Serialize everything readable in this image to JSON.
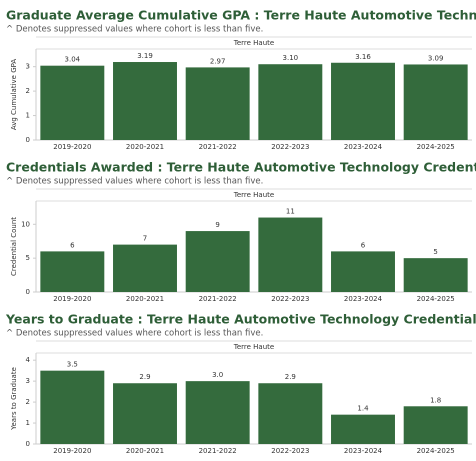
{
  "chart_data": [
    {
      "type": "bar",
      "title": "Graduate Average Cumulative GPA : Terre Haute Automotive Technology Credentials",
      "subtitle": "^ Denotes suppressed values where cohort is less than five.",
      "facet": "Terre Haute",
      "y_label": "Avg Cumulative GPA",
      "categories": [
        "2019-2020",
        "2020-2021",
        "2021-2022",
        "2022-2023",
        "2023-2024",
        "2024-2025"
      ],
      "values": [
        3.04,
        3.19,
        2.97,
        3.1,
        3.16,
        3.09
      ],
      "value_labels": [
        "3.04",
        "3.19",
        "2.97",
        "3.10",
        "3.16",
        "3.09"
      ],
      "color": "#346b3d",
      "ylim": [
        0,
        3.6
      ],
      "yticks": [
        0,
        1,
        2,
        3
      ],
      "grid": false
    },
    {
      "type": "bar",
      "title": "Credentials Awarded : Terre Haute Automotive Technology Credentials",
      "subtitle": "^ Denotes suppressed values where cohort is less than five.",
      "facet": "Terre Haute",
      "y_label": "Credential Count",
      "categories": [
        "2019-2020",
        "2020-2021",
        "2021-2022",
        "2022-2023",
        "2023-2024",
        "2024-2025"
      ],
      "values": [
        6,
        7,
        9,
        11,
        6,
        5
      ],
      "color": "#346b3d",
      "ylim": [
        0,
        13
      ],
      "yticks": [
        0,
        5,
        10
      ],
      "grid": false
    },
    {
      "type": "bar",
      "title": "Years to Graduate : Terre Haute Automotive Technology Credentials",
      "subtitle": "^ Denotes suppressed values where cohort is less than five.",
      "facet": "Terre Haute",
      "y_label": "Years to Graduate",
      "categories": [
        "2019-2020",
        "2020-2021",
        "2021-2022",
        "2022-2023",
        "2023-2024",
        "2024-2025"
      ],
      "values": [
        3.5,
        2.9,
        3,
        2.9,
        1.4,
        1.8
      ],
      "value_labels": [
        "3.5",
        "2.9",
        "3.0",
        "2.9",
        "1.4",
        "1.8"
      ],
      "color": "#346b3d",
      "ylim": [
        0,
        4.2
      ],
      "yticks": [
        0,
        1,
        2,
        3,
        4
      ],
      "grid": false
    }
  ]
}
